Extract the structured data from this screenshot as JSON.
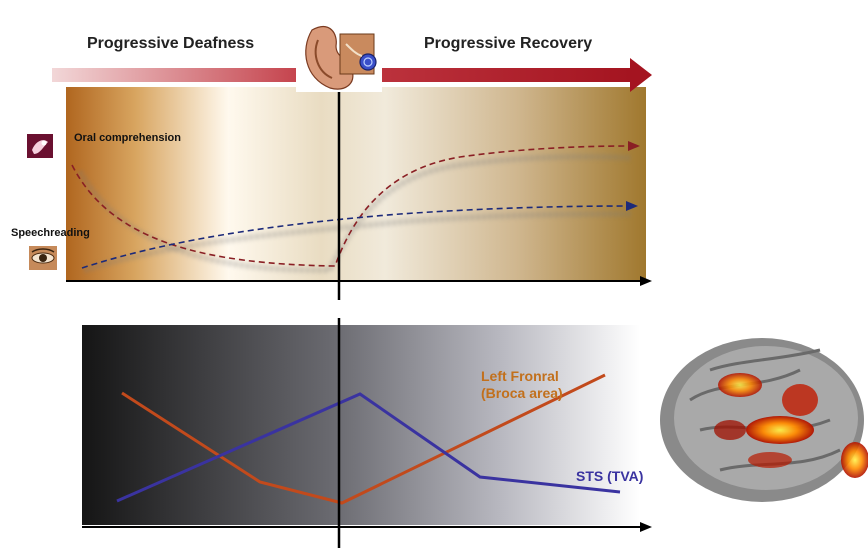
{
  "header": {
    "left_title": "Progressive Deafness",
    "right_title": "Progressive Recovery"
  },
  "top_panel": {
    "labels": {
      "oral": "Oral comprehension",
      "speech": "Speechreading"
    },
    "icons": [
      "ear-photo-icon",
      "lips-icon",
      "eye-icon"
    ],
    "colors": {
      "gradient_edge": "#a8651f",
      "arrow": "#b01820",
      "oral_line": "#8a1f24",
      "speech_line": "#1c2a7a"
    }
  },
  "bottom_panel": {
    "labels": {
      "frontal_line1": "Left Fronral",
      "frontal_line2": "(Broca area)",
      "sts": "STS (TVA)"
    },
    "colors": {
      "frontal": "#c24a1c",
      "sts": "#3a33a0"
    },
    "brain_icon": "brain-activation-icon"
  }
}
